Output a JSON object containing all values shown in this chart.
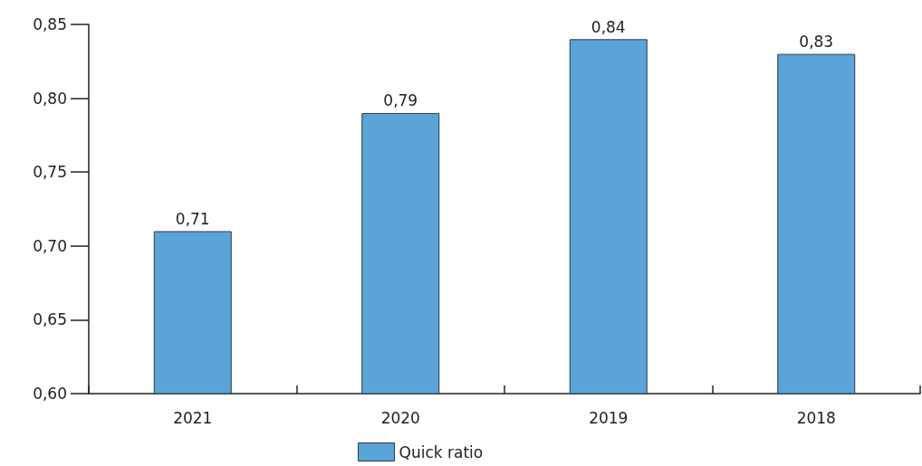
{
  "chart_data": {
    "type": "bar",
    "categories": [
      "2021",
      "2020",
      "2019",
      "2018"
    ],
    "series": [
      {
        "name": "Quick ratio",
        "color": "#5ba4d8",
        "values": [
          0.71,
          0.79,
          0.84,
          0.83
        ],
        "value_labels": [
          "0,71",
          "0,79",
          "0,84",
          "0,83"
        ]
      }
    ],
    "ylim": [
      0.6,
      0.85
    ],
    "yticks": [
      {
        "value": 0.6,
        "label": "0,60"
      },
      {
        "value": 0.65,
        "label": "0,65"
      },
      {
        "value": 0.7,
        "label": "0,70"
      },
      {
        "value": 0.75,
        "label": "0,75"
      },
      {
        "value": 0.8,
        "label": "0,80"
      },
      {
        "value": 0.85,
        "label": "0,85"
      }
    ],
    "grid": false,
    "legend": "bottom"
  }
}
